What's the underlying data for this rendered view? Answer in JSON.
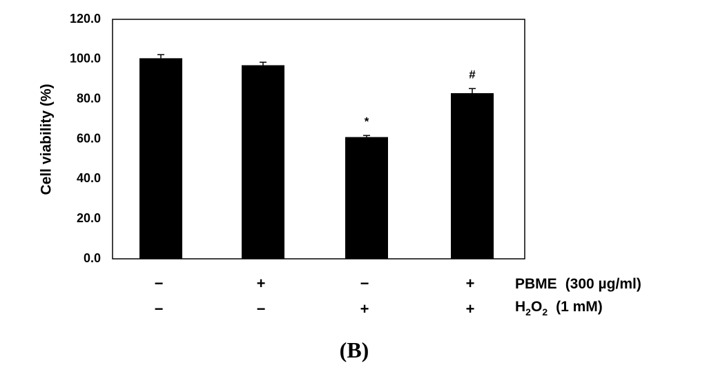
{
  "chart_data": {
    "type": "bar",
    "ylabel": "Cell viability (%)",
    "ylim": [
      0,
      120
    ],
    "yticks": [
      "0.0",
      "20.0",
      "40.0",
      "60.0",
      "80.0",
      "100.0",
      "120.0"
    ],
    "values": [
      100.5,
      97.0,
      61.0,
      83.0
    ],
    "errors": [
      1.8,
      1.5,
      0.8,
      2.3
    ],
    "significance": [
      "",
      "",
      "*",
      "#"
    ],
    "bar_color": "#000000",
    "conditions": [
      {
        "label": "PBME",
        "detail": "(300 µg/ml)",
        "signs": [
          "−",
          "+",
          "−",
          "+"
        ]
      },
      {
        "label": "H2O2",
        "label_main": "H",
        "label_sub1": "2",
        "label_mid": "O",
        "label_sub2": "2",
        "detail": "(1 mM)",
        "signs": [
          "−",
          "−",
          "+",
          "+"
        ]
      }
    ],
    "panel_label": "(B)",
    "grid": false
  }
}
